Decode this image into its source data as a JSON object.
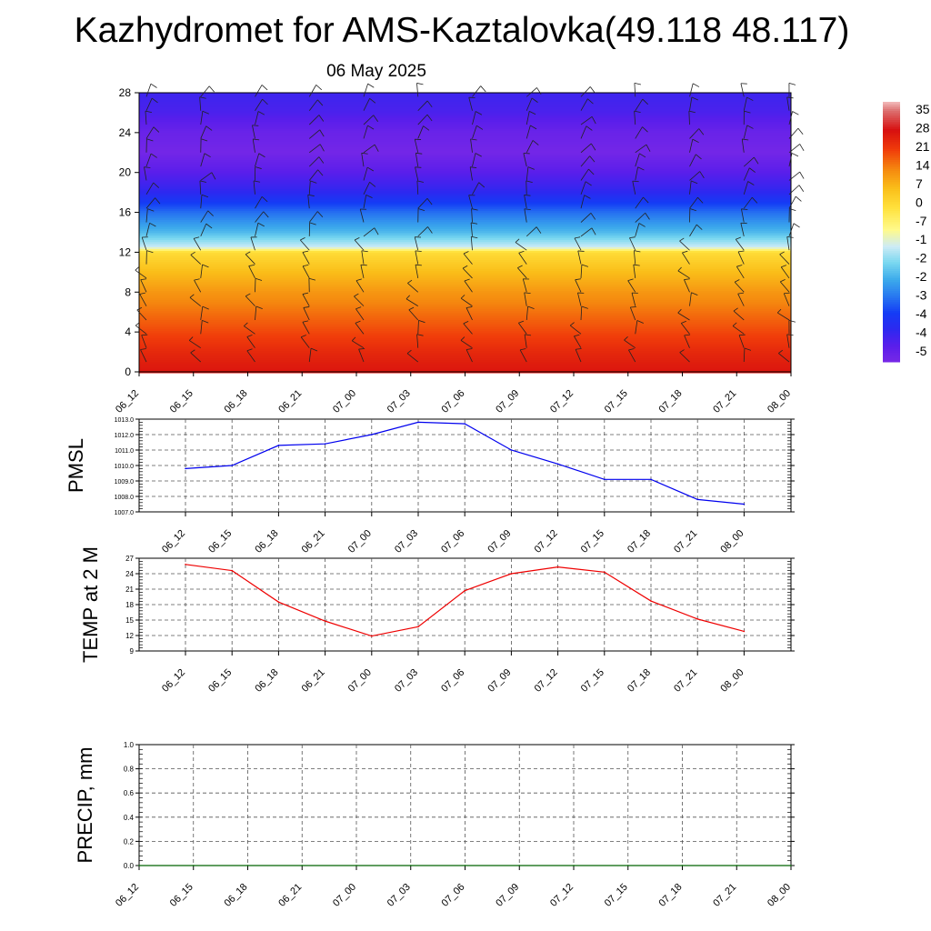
{
  "title": "Kazhydromet for AMS-Kaztalovka(49.118 48.117)",
  "subtitle": "06 May 2025",
  "colors": {
    "pmsl_line": "#0000ee",
    "temp_line": "#ee0000",
    "precip_line": "#006400"
  },
  "chart_data": [
    {
      "type": "heatmap",
      "name": "cross-section",
      "x_ticks": [
        "06_12",
        "06_15",
        "06_18",
        "06_21",
        "07_00",
        "07_03",
        "07_06",
        "07_09",
        "07_12",
        "07_15",
        "07_18",
        "07_21",
        "08_00"
      ],
      "y_ticks": [
        "0",
        "4",
        "8",
        "12",
        "16",
        "20",
        "24",
        "28"
      ],
      "ylim": [
        0,
        28
      ],
      "colorbar_labels": [
        "35",
        "28",
        "21",
        "14",
        "7",
        "0",
        "-7",
        "-1",
        "-2",
        "-2",
        "-3",
        "-4",
        "-4",
        "-5"
      ],
      "colorbar_range": [
        -56,
        38
      ],
      "temperature_profile_by_level": [
        {
          "level": 0,
          "value": 27
        },
        {
          "level": 2,
          "value": 24
        },
        {
          "level": 4,
          "value": 20
        },
        {
          "level": 6,
          "value": 16
        },
        {
          "level": 8,
          "value": 12
        },
        {
          "level": 10,
          "value": 7
        },
        {
          "level": 12,
          "value": 1
        },
        {
          "level": 12.5,
          "value": -14
        },
        {
          "level": 14,
          "value": -24
        },
        {
          "level": 16,
          "value": -33
        },
        {
          "level": 18,
          "value": -44
        },
        {
          "level": 20,
          "value": -50
        },
        {
          "level": 22,
          "value": -55
        },
        {
          "level": 24,
          "value": -53
        },
        {
          "level": 26,
          "value": -48
        },
        {
          "level": 28,
          "value": -46
        }
      ]
    },
    {
      "type": "line",
      "ylabel": "PMSL",
      "ylim": [
        1007.0,
        1013.0
      ],
      "y_ticks": [
        "1007.0",
        "1008.0",
        "1009.0",
        "1010.0",
        "1011.0",
        "1012.0",
        "1013.0"
      ],
      "x": [
        "06_12",
        "06_15",
        "06_18",
        "06_21",
        "07_00",
        "07_03",
        "07_06",
        "07_09",
        "07_12",
        "07_15",
        "07_18",
        "07_21",
        "08_00"
      ],
      "values": [
        1009.8,
        1010.0,
        1011.3,
        1011.4,
        1012.0,
        1012.8,
        1012.7,
        1011.0,
        1010.1,
        1009.1,
        1009.1,
        1007.8,
        1007.5
      ]
    },
    {
      "type": "line",
      "ylabel": "TEMP at 2 M",
      "ylim": [
        9,
        27
      ],
      "y_ticks": [
        "9",
        "12",
        "15",
        "18",
        "21",
        "24",
        "27"
      ],
      "x": [
        "06_12",
        "06_15",
        "06_18",
        "06_21",
        "07_00",
        "07_03",
        "07_06",
        "07_09",
        "07_12",
        "07_15",
        "07_18",
        "07_21",
        "08_00"
      ],
      "values": [
        25.8,
        24.6,
        18.5,
        14.8,
        11.9,
        13.7,
        20.7,
        24.0,
        25.3,
        24.3,
        18.7,
        15.2,
        12.8
      ]
    },
    {
      "type": "line",
      "ylabel": "PRECIP, mm",
      "ylim": [
        0.0,
        1.0
      ],
      "y_ticks": [
        "0.0",
        "0.2",
        "0.4",
        "0.6",
        "0.8",
        "1.0"
      ],
      "x": [
        "06_12",
        "06_15",
        "06_18",
        "06_21",
        "07_00",
        "07_03",
        "07_06",
        "07_09",
        "07_12",
        "07_15",
        "07_18",
        "07_21",
        "08_00"
      ],
      "values": [
        0,
        0,
        0,
        0,
        0,
        0,
        0,
        0,
        0,
        0,
        0,
        0,
        0
      ]
    }
  ]
}
